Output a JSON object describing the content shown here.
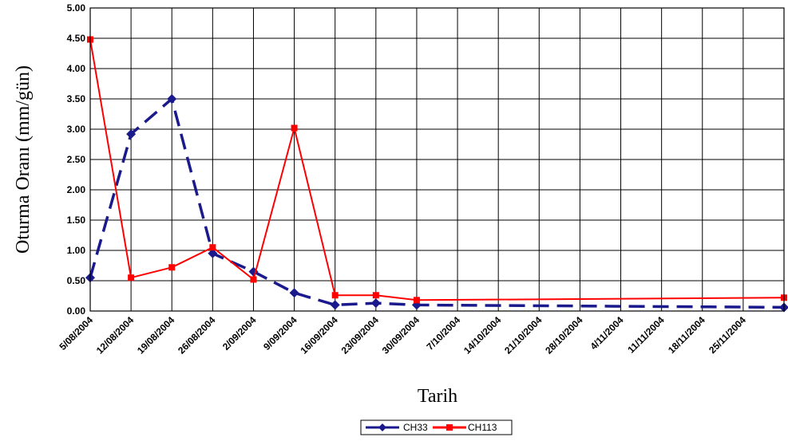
{
  "chart_data": {
    "type": "line",
    "xlabel": "Tarih",
    "ylabel": "Oturma Oranı (mm/gün)",
    "ylim": [
      0,
      5
    ],
    "yticks": [
      "0.00",
      "0.50",
      "1.00",
      "1.50",
      "2.00",
      "2.50",
      "3.00",
      "3.50",
      "4.00",
      "4.50",
      "5.00"
    ],
    "x_tick_labels": [
      "5/08/2004",
      "12/08/2004",
      "19/08/2004",
      "26/08/2004",
      "2/09/2004",
      "9/09/2004",
      "16/09/2004",
      "23/09/2004",
      "30/09/2004",
      "7/10/2004",
      "14/10/2004",
      "21/10/2004",
      "28/10/2004",
      "4/11/2004",
      "11/11/2004",
      "18/11/2004",
      "25/11/2004"
    ],
    "x_start": "2004-08-05",
    "x_end": "2004-12-02",
    "grid": true,
    "legend_position": "bottom",
    "series": [
      {
        "name": "CH33",
        "color": "#1a1a8c",
        "style": "dashed",
        "marker": "diamond",
        "points": [
          [
            "2004-08-05",
            0.55
          ],
          [
            "2004-08-12",
            2.92
          ],
          [
            "2004-08-19",
            3.5
          ],
          [
            "2004-08-26",
            0.95
          ],
          [
            "2004-09-02",
            0.65
          ],
          [
            "2004-09-09",
            0.3
          ],
          [
            "2004-09-16",
            0.1
          ],
          [
            "2004-09-23",
            0.13
          ],
          [
            "2004-09-30",
            0.1
          ],
          [
            "2004-12-02",
            0.06
          ]
        ]
      },
      {
        "name": "CH113",
        "color": "#ff0000",
        "style": "solid",
        "marker": "square",
        "points": [
          [
            "2004-08-05",
            4.48
          ],
          [
            "2004-08-12",
            0.55
          ],
          [
            "2004-08-19",
            0.72
          ],
          [
            "2004-08-26",
            1.05
          ],
          [
            "2004-09-02",
            0.52
          ],
          [
            "2004-09-09",
            3.02
          ],
          [
            "2004-09-16",
            0.26
          ],
          [
            "2004-09-23",
            0.26
          ],
          [
            "2004-09-30",
            0.18
          ],
          [
            "2004-12-02",
            0.22
          ]
        ]
      }
    ]
  }
}
